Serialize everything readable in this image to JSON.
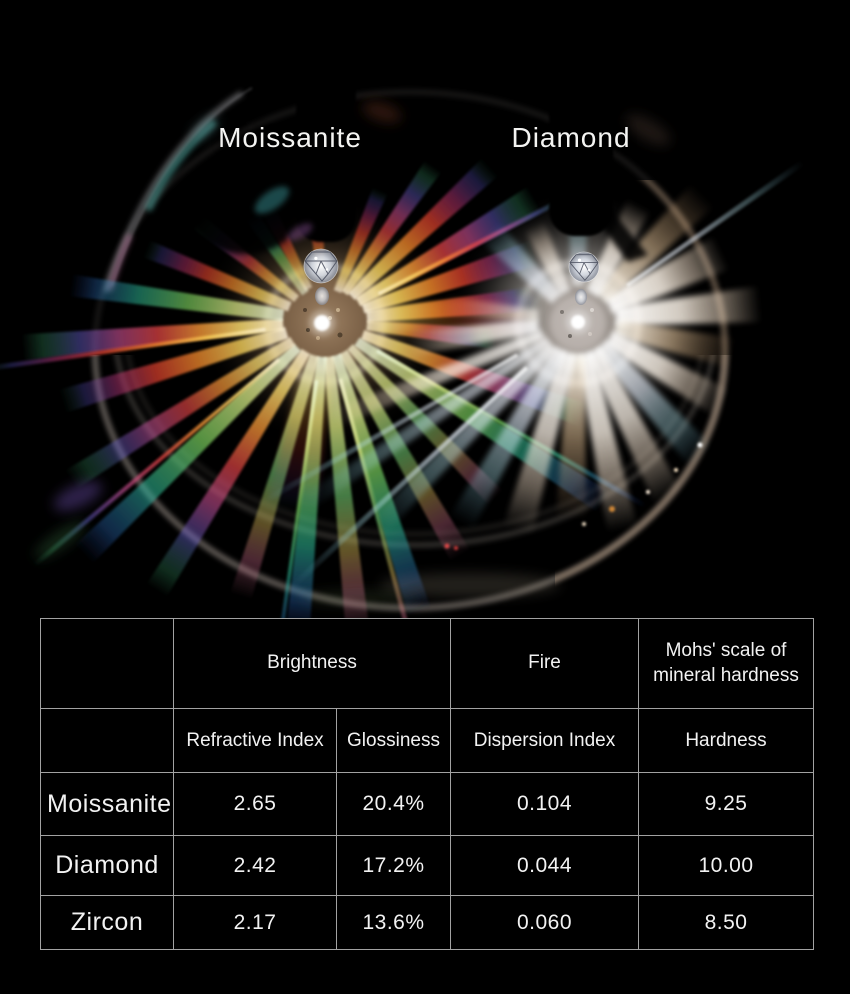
{
  "photo": {
    "left_label": "Moissanite",
    "right_label": "Diamond"
  },
  "chart_data": {
    "type": "table",
    "group_headers": [
      {
        "label": "Brightness",
        "span": 2
      },
      {
        "label": "Fire",
        "span": 1
      },
      {
        "label": "Mohs' scale of mineral hardness",
        "span": 1
      }
    ],
    "sub_headers": [
      "Refractive Index",
      "Glossiness",
      "Dispersion Index",
      "Hardness"
    ],
    "rows": [
      [
        "Moissanite",
        "2.65",
        "20.4%",
        "0.104",
        "9.25"
      ],
      [
        "Diamond",
        "2.42",
        "17.2%",
        "0.044",
        "10.00"
      ],
      [
        "Zircon",
        "2.17",
        "13.6%",
        "0.060",
        "8.50"
      ]
    ],
    "layout": {
      "grid": true,
      "legend": "none"
    }
  },
  "colors": {
    "background": "#000000",
    "table_border": "#a2a2a2",
    "text": "#f2f2f2"
  }
}
